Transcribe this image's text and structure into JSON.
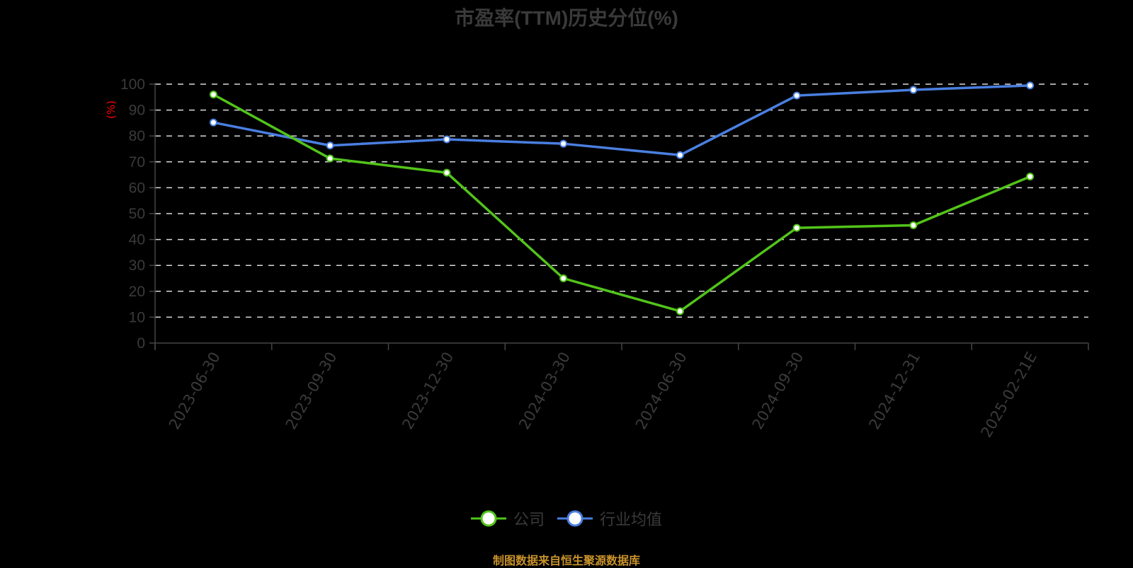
{
  "title": "市盈率(TTM)历史分位(%)",
  "source_note": "制图数据来自恒生聚源数据库",
  "legend": [
    {
      "label": "公司",
      "color": "#52c41a"
    },
    {
      "label": "行业均值",
      "color": "#4a7fe0"
    }
  ],
  "chart_data": {
    "type": "line",
    "title": "市盈率(TTM)历史分位(%)",
    "xlabel": "",
    "ylabel": "(%)",
    "ylim": [
      0,
      100
    ],
    "yticks": [
      0,
      10,
      20,
      30,
      40,
      50,
      60,
      70,
      80,
      90,
      100
    ],
    "grid": true,
    "legend_position": "bottom",
    "categories": [
      "2023-06-30",
      "2023-09-30",
      "2023-12-30",
      "2024-03-30",
      "2024-06-30",
      "2024-09-30",
      "2024-12-31",
      "2025-02-21E"
    ],
    "series": [
      {
        "name": "公司",
        "color": "#52c41a",
        "values": [
          96.0,
          71.3,
          65.8,
          25.0,
          12.3,
          44.5,
          45.5,
          64.3
        ]
      },
      {
        "name": "行业均值",
        "color": "#4a7fe0",
        "values": [
          85.2,
          76.3,
          78.7,
          77.0,
          72.6,
          95.6,
          97.8,
          99.5
        ]
      }
    ]
  }
}
